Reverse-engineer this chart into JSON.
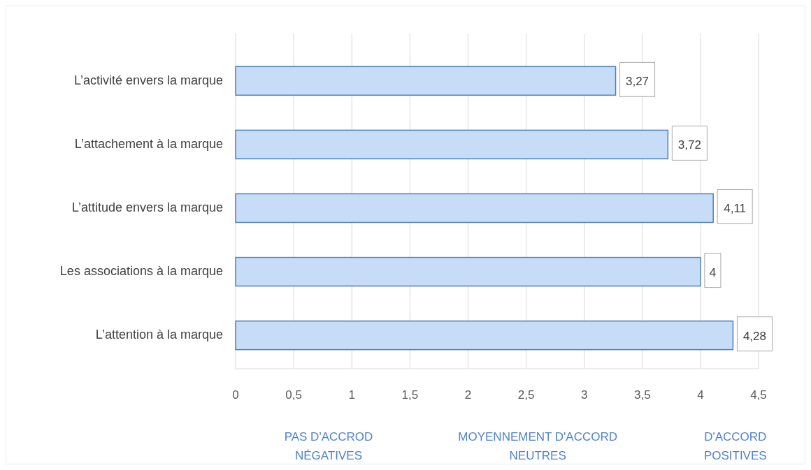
{
  "chart_data": {
    "type": "bar",
    "orientation": "horizontal",
    "categories": [
      "L’activité envers la marque",
      "L’attachement à la marque",
      "L’attitude envers la marque",
      "Les associations à la marque",
      "L’attention à la marque"
    ],
    "values": [
      3.27,
      3.72,
      4.11,
      4,
      4.28
    ],
    "value_labels": [
      "3,27",
      "3,72",
      "4,11",
      "4",
      "4,28"
    ],
    "color": "#c6dcf7",
    "xlim": [
      0,
      4.5
    ],
    "xticks": [
      0,
      {
        "value": 0.5,
        "label": "0,5"
      },
      1,
      {
        "value": 1.5,
        "label": "1,5"
      },
      2,
      {
        "value": 2.5,
        "label": "2,5"
      },
      3,
      {
        "value": 3.5,
        "label": "3,5"
      },
      4,
      {
        "value": 4.5,
        "label": "4,5"
      }
    ],
    "grid": "x",
    "annotations": [
      "PAS D'ACCROD\nNÉGATIVES",
      "MOYENNEMENT D'ACCORD\nNEUTRES",
      "D'ACCORD\nPOSITIVES"
    ]
  }
}
